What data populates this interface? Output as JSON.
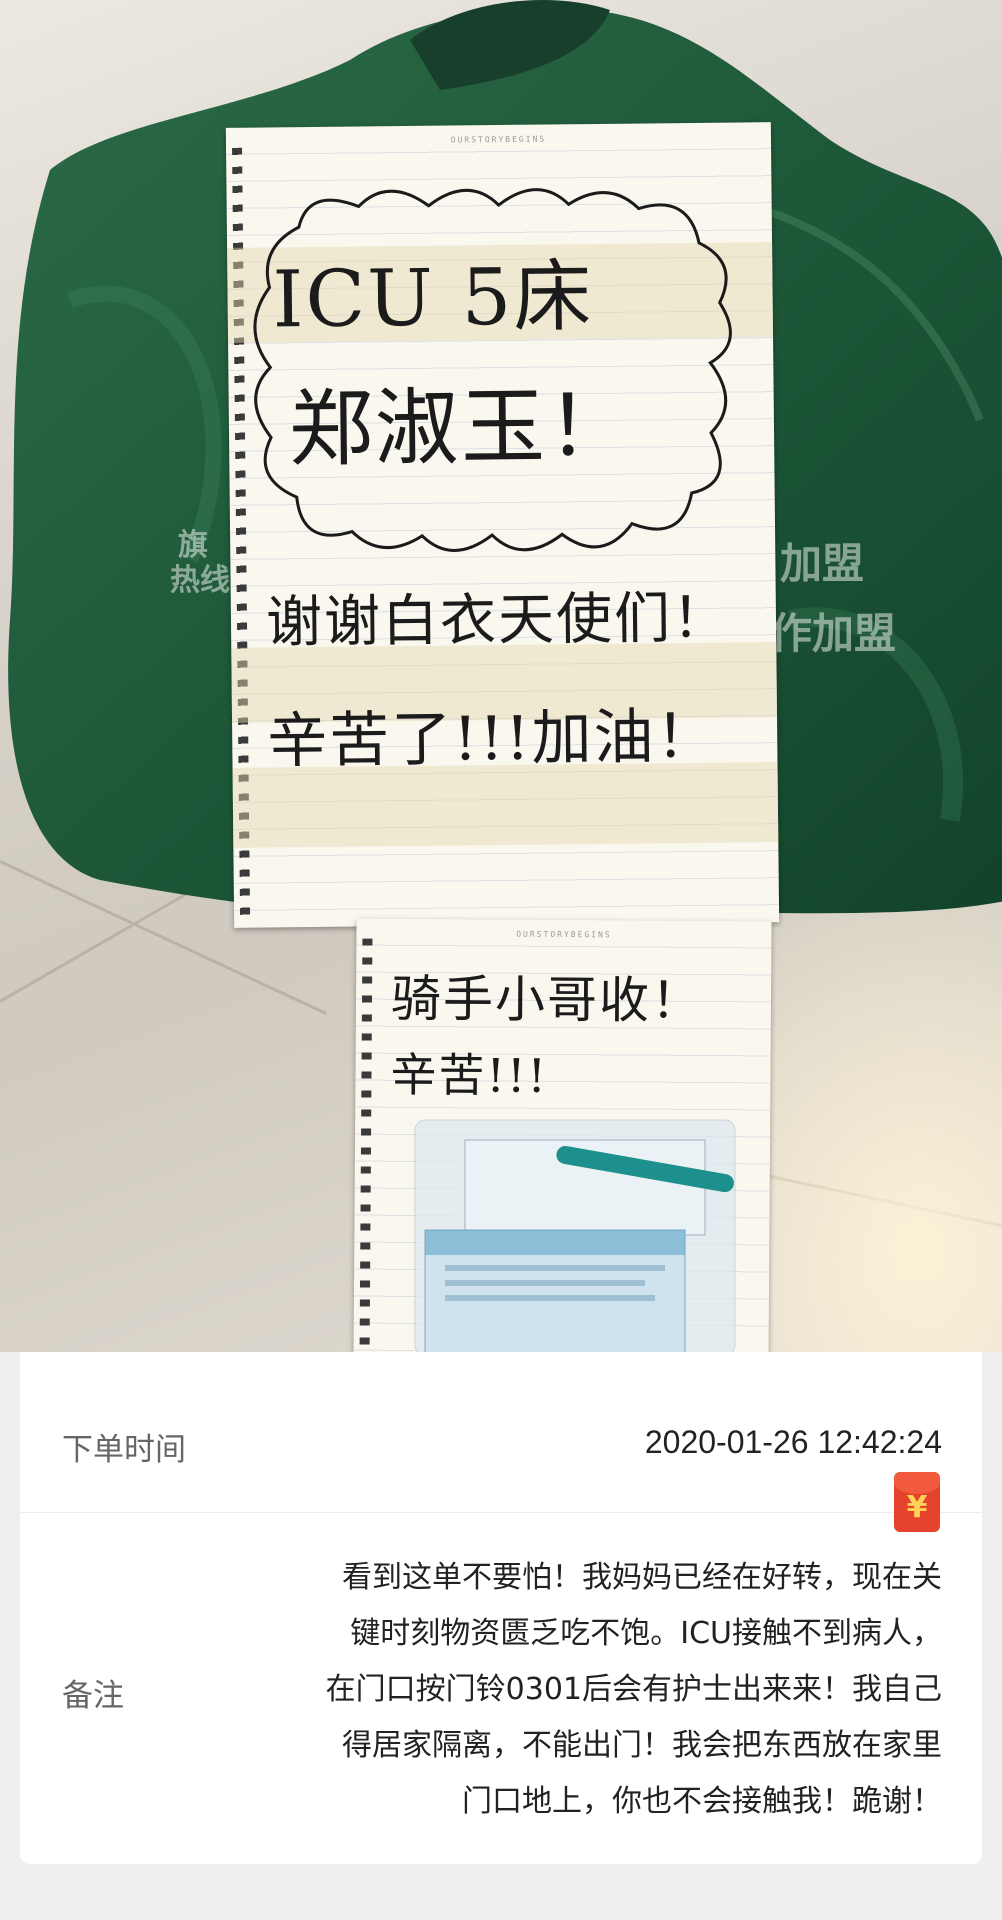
{
  "photo": {
    "note_main": {
      "line1": "ICU 5床",
      "line2": "郑淑玉！",
      "line3": "谢谢白衣天使们！",
      "line4": "辛苦了!!!加油！",
      "brand": "OURSTORYBEGINS"
    },
    "note_rider": {
      "line1": "骑手小哥收！",
      "line2": "辛苦!!!",
      "brand": "OURSTORYBEGINS"
    },
    "bag_fragments": [
      "加盟",
      "作加盟",
      "热线",
      "旗"
    ]
  },
  "order": {
    "time_label": "下单时间",
    "time_value": "2020-01-26 12:42:24",
    "redpacket_symbol": "¥",
    "remark_label": "备注",
    "remark_lines": [
      "看到这单不要怕！我妈妈已经在好转，现在关",
      "键时刻物资匮乏吃不饱。ICU接触不到病人，",
      "在门口按门铃0301后会有护士出来来！我自己",
      "得居家隔离，不能出门！我会把东西放在家里",
      "门口地上，你也不会接触我！跪谢！"
    ]
  },
  "colors": {
    "bag_green": "#1f5a3a",
    "card_bg": "#ffffff",
    "page_bg": "#efefef",
    "redpacket": "#e5432e"
  }
}
